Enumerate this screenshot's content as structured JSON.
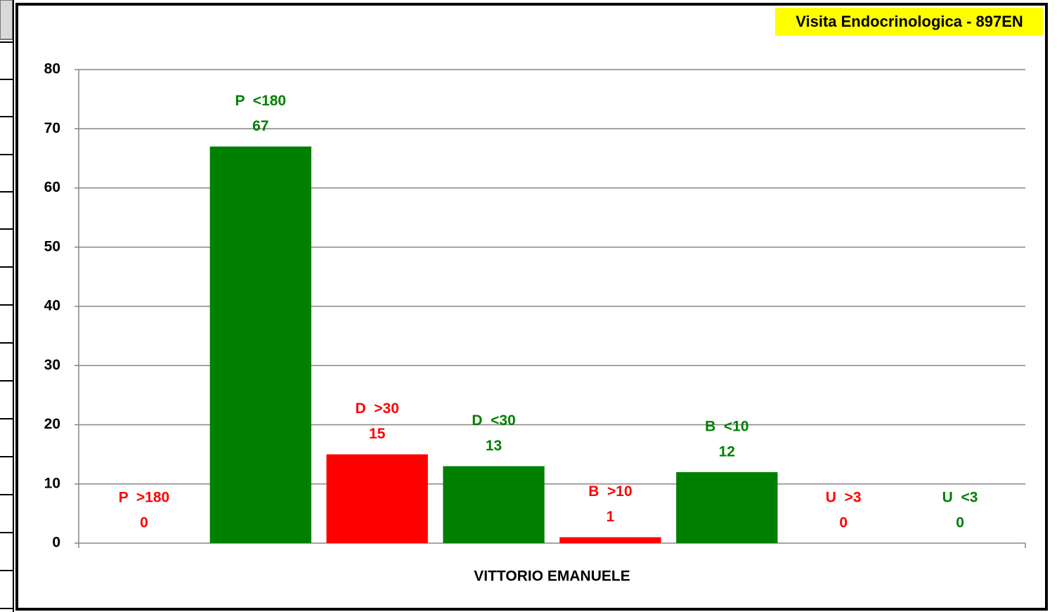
{
  "chart_data": {
    "type": "bar",
    "title": "Visita Endocrinologica - 897EN",
    "categories": [
      "VITTORIO EMANUELE"
    ],
    "series": [
      {
        "name": "P  >180",
        "color": "#ff0000",
        "values": [
          0
        ]
      },
      {
        "name": "P  <180",
        "color": "#008000",
        "values": [
          67
        ]
      },
      {
        "name": "D  >30",
        "color": "#ff0000",
        "values": [
          15
        ]
      },
      {
        "name": "D  <30",
        "color": "#008000",
        "values": [
          13
        ]
      },
      {
        "name": "B  >10",
        "color": "#ff0000",
        "values": [
          1
        ]
      },
      {
        "name": "B  <10",
        "color": "#008000",
        "values": [
          12
        ]
      },
      {
        "name": "U  >3",
        "color": "#ff0000",
        "values": [
          0
        ]
      },
      {
        "name": "U  <3",
        "color": "#008000",
        "values": [
          0
        ]
      }
    ],
    "ylim": [
      0,
      80
    ],
    "yticks": [
      0,
      10,
      20,
      30,
      40,
      50,
      60,
      70,
      80
    ],
    "grid": true
  }
}
